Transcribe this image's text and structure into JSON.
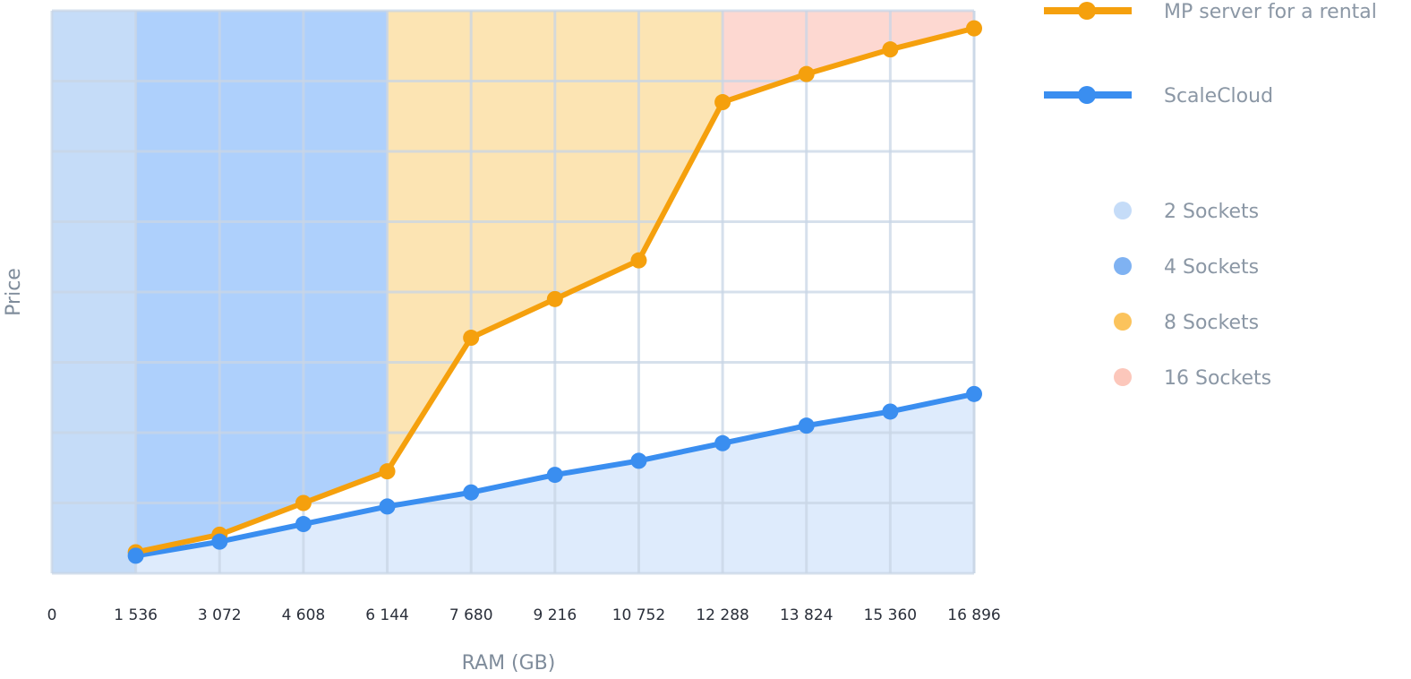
{
  "chart_data": {
    "type": "line",
    "xlabel": "RAM (GB)",
    "ylabel": "Price",
    "x_ticks": [
      0,
      1536,
      3072,
      4608,
      6144,
      7680,
      9216,
      10752,
      12288,
      13824,
      15360,
      16896
    ],
    "x_tick_labels": [
      "0",
      "1 536",
      "3 072",
      "4 608",
      "6 144",
      "7 680",
      "9 216",
      "10 752",
      "12 288",
      "13 824",
      "15 360",
      "16 896"
    ],
    "xlim": [
      0,
      16896
    ],
    "ylim": [
      0,
      80
    ],
    "y_ticks_shown": false,
    "grid": true,
    "legend_position": "right",
    "series": [
      {
        "name": "MP server for a rental",
        "color": "#f5a00d",
        "x": [
          1536,
          3072,
          4608,
          6144,
          7680,
          9216,
          10752,
          12288,
          13824,
          15360,
          16896
        ],
        "values": [
          3,
          5.5,
          10,
          14.5,
          33.5,
          39,
          44.5,
          67,
          71,
          74.5,
          77.5
        ]
      },
      {
        "name": "ScaleCloud",
        "color": "#3a8ef0",
        "x": [
          1536,
          3072,
          4608,
          6144,
          7680,
          9216,
          10752,
          12288,
          13824,
          15360,
          16896
        ],
        "values": [
          2.5,
          4.5,
          7,
          9.5,
          11.5,
          14,
          16,
          18.5,
          21,
          23,
          25.5
        ]
      }
    ],
    "bands": [
      {
        "name": "2 Sockets",
        "color": "#c5dcf8",
        "from": 0,
        "to": 1536,
        "top": 80
      },
      {
        "name": "4 Sockets",
        "color": "#7fb2f2",
        "from": 1536,
        "to": 6144,
        "top": 80
      },
      {
        "name": "8 Sockets",
        "color": "#fbc35c",
        "from": 6144,
        "to": 12288,
        "top": 80
      },
      {
        "name": "16 Sockets",
        "color": "#fcc7bb",
        "from": 12288,
        "to": 16896,
        "top": 80
      }
    ],
    "colors": {
      "plot_bg": "#e2ecfb",
      "grid": "#c8d6e6",
      "band_2": "#c5dcf8",
      "band_4": "#aed0fc",
      "band_8": "#fce4b3",
      "band_16": "#fdd8d1",
      "below_blue": "#deebfc",
      "between_white": "#ffffff"
    }
  }
}
